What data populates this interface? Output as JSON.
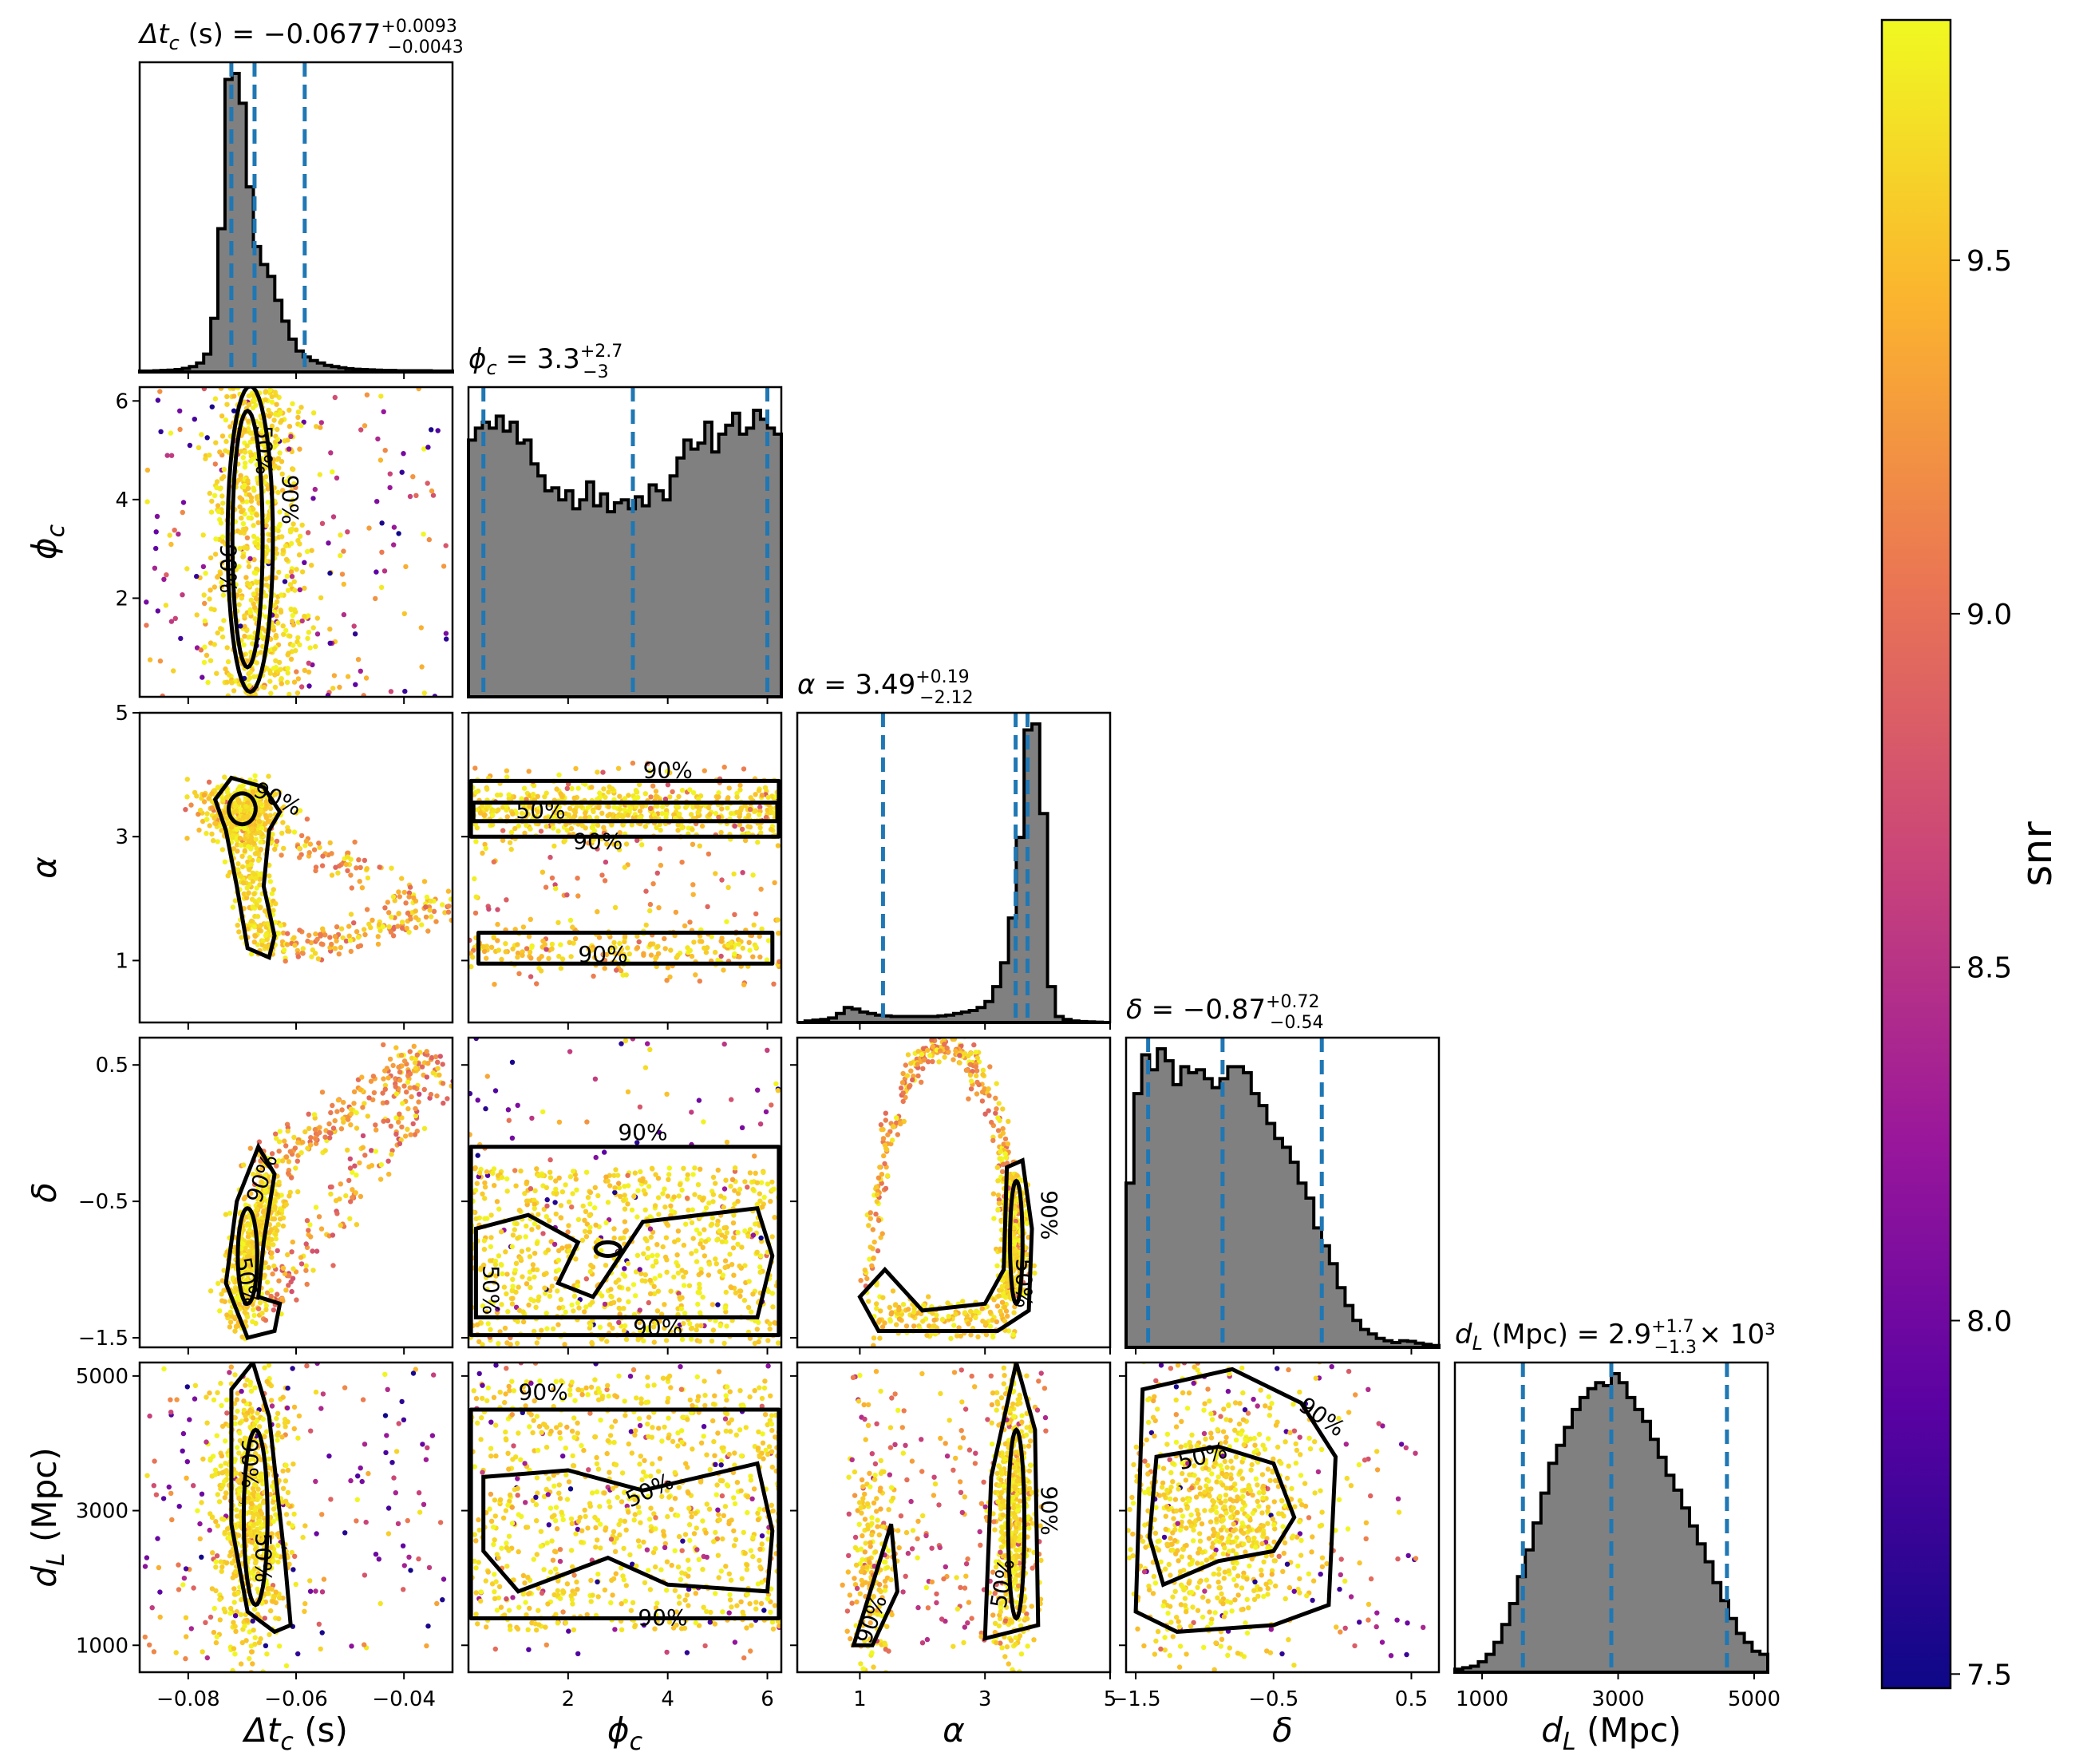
{
  "chart_data": {
    "type": "scatter",
    "subtype": "corner-plot",
    "parameters": [
      {
        "key": "dtc",
        "label": "Δt_c (s)",
        "title": "Δt_c (s) = −0.0677 (+0.0093 / −0.0043)",
        "median": -0.0677,
        "upper_err": 0.0093,
        "lower_err": 0.0043,
        "range": [
          -0.089,
          -0.031
        ],
        "ticks": [
          -0.08,
          -0.06,
          -0.04
        ],
        "tick_labels": [
          "−0.08",
          "−0.06",
          "−0.04"
        ],
        "quantiles": [
          -0.072,
          -0.0677,
          -0.0584
        ]
      },
      {
        "key": "phic",
        "label": "ϕ_c",
        "title": "ϕ_c = 3.3 (+2.7 / −3)",
        "median": 3.3,
        "upper_err": 2.7,
        "lower_err": 3,
        "range": [
          0.0,
          6.28
        ],
        "ticks": [
          2,
          4,
          6
        ],
        "tick_labels": [
          "2",
          "4",
          "6"
        ],
        "quantiles": [
          0.3,
          3.3,
          6.0
        ]
      },
      {
        "key": "alpha",
        "label": "α",
        "title": "α = 3.49 (+0.19 / −2.12)",
        "median": 3.49,
        "upper_err": 0.19,
        "lower_err": 2.12,
        "range": [
          0.0,
          5.0
        ],
        "ticks": [
          1,
          3,
          5
        ],
        "tick_labels": [
          "1",
          "3",
          "5"
        ],
        "quantiles": [
          1.37,
          3.49,
          3.68
        ]
      },
      {
        "key": "delta",
        "label": "δ",
        "title": "δ = −0.87 (+0.72 / −0.54)",
        "median": -0.87,
        "upper_err": 0.72,
        "lower_err": 0.54,
        "range": [
          -1.57,
          0.7
        ],
        "ticks": [
          -1.5,
          -0.5,
          0.5
        ],
        "tick_labels": [
          "−1.5",
          "−0.5",
          "0.5"
        ],
        "quantiles": [
          -1.41,
          -0.87,
          -0.15
        ]
      },
      {
        "key": "dl",
        "label": "d_L (Mpc)",
        "title": "d_L (Mpc) = 2.9 (+1.7 / −1.3) × 10^3",
        "median": 2900,
        "upper_err": 1700,
        "lower_err": 1300,
        "range": [
          600,
          5200
        ],
        "ticks": [
          1000,
          3000,
          5000
        ],
        "tick_labels": [
          "1000",
          "3000",
          "5000"
        ],
        "quantiles": [
          1600,
          2900,
          4600
        ]
      }
    ],
    "histograms": {
      "dtc": [
        0.003,
        0.003,
        0.004,
        0.005,
        0.006,
        0.008,
        0.012,
        0.018,
        0.03,
        0.06,
        0.18,
        0.48,
        0.98,
        1.0,
        0.9,
        0.62,
        0.42,
        0.36,
        0.32,
        0.24,
        0.17,
        0.11,
        0.07,
        0.05,
        0.038,
        0.03,
        0.022,
        0.018,
        0.014,
        0.011,
        0.009,
        0.008,
        0.007,
        0.006,
        0.005,
        0.005,
        0.004,
        0.004,
        0.004,
        0.004,
        0.004,
        0.003,
        0.003,
        0.003
      ],
      "phic": [
        0.86,
        0.9,
        0.92,
        0.9,
        0.94,
        0.89,
        0.92,
        0.85,
        0.86,
        0.78,
        0.74,
        0.69,
        0.7,
        0.66,
        0.69,
        0.63,
        0.66,
        0.72,
        0.64,
        0.68,
        0.62,
        0.65,
        0.66,
        0.63,
        0.67,
        0.64,
        0.71,
        0.69,
        0.66,
        0.74,
        0.8,
        0.86,
        0.83,
        0.85,
        0.92,
        0.82,
        0.88,
        0.91,
        0.95,
        0.88,
        0.9,
        0.96,
        0.93,
        0.9,
        0.88
      ],
      "alpha": [
        0.0,
        0.005,
        0.008,
        0.01,
        0.015,
        0.03,
        0.05,
        0.045,
        0.035,
        0.03,
        0.025,
        0.022,
        0.02,
        0.02,
        0.02,
        0.02,
        0.02,
        0.02,
        0.022,
        0.025,
        0.03,
        0.035,
        0.04,
        0.05,
        0.07,
        0.12,
        0.2,
        0.35,
        0.62,
        0.98,
        1.0,
        0.7,
        0.12,
        0.02,
        0.01,
        0.005,
        0.003,
        0.002,
        0.001,
        0.0
      ],
      "delta": [
        0.55,
        0.85,
        0.98,
        0.93,
        1.0,
        0.96,
        0.88,
        0.94,
        0.92,
        0.93,
        0.9,
        0.87,
        0.9,
        0.94,
        0.94,
        0.92,
        0.85,
        0.81,
        0.75,
        0.7,
        0.67,
        0.62,
        0.55,
        0.5,
        0.4,
        0.34,
        0.28,
        0.2,
        0.14,
        0.09,
        0.06,
        0.045,
        0.03,
        0.022,
        0.016,
        0.022,
        0.02,
        0.014,
        0.01,
        0.006
      ],
      "dl": [
        0.01,
        0.015,
        0.02,
        0.035,
        0.06,
        0.1,
        0.16,
        0.23,
        0.32,
        0.41,
        0.5,
        0.6,
        0.7,
        0.76,
        0.82,
        0.88,
        0.92,
        0.95,
        0.97,
        0.96,
        1.0,
        0.97,
        0.92,
        0.88,
        0.84,
        0.78,
        0.72,
        0.66,
        0.61,
        0.55,
        0.49,
        0.43,
        0.37,
        0.3,
        0.24,
        0.18,
        0.13,
        0.1,
        0.07,
        0.06
      ]
    },
    "contour_labels": [
      "50%",
      "90%"
    ],
    "colorbar": {
      "label": "snr",
      "range": [
        7.48,
        9.84
      ],
      "ticks": [
        7.5,
        8.0,
        8.5,
        9.0,
        9.5
      ],
      "tick_labels": [
        "7.5",
        "8.0",
        "8.5",
        "9.0",
        "9.5"
      ],
      "colormap": "plasma"
    },
    "colors": {
      "histogram_fill": "#808080",
      "quantile_line": "#1f77b4",
      "contour": "#000000",
      "colormap_stops": [
        "#0d0887",
        "#5b02a3",
        "#9a179b",
        "#cb4678",
        "#eb7852",
        "#fbb32f",
        "#f0f921"
      ]
    }
  }
}
